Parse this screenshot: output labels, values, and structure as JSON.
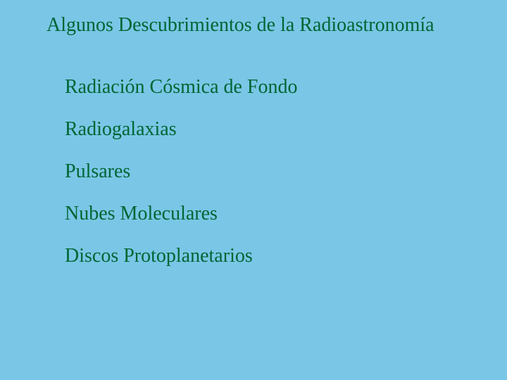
{
  "slide": {
    "background_color": "#7ac6e6",
    "text_color": "#006633",
    "font_family": "Times New Roman",
    "title": "Algunos Descubrimientos de la Radioastronomía",
    "title_fontsize": 28,
    "item_fontsize": 28,
    "items": [
      "Radiación Cósmica de Fondo",
      "Radiogalaxias",
      "Pulsares",
      "Nubes Moleculares",
      "Discos Protoplanetarios"
    ]
  }
}
